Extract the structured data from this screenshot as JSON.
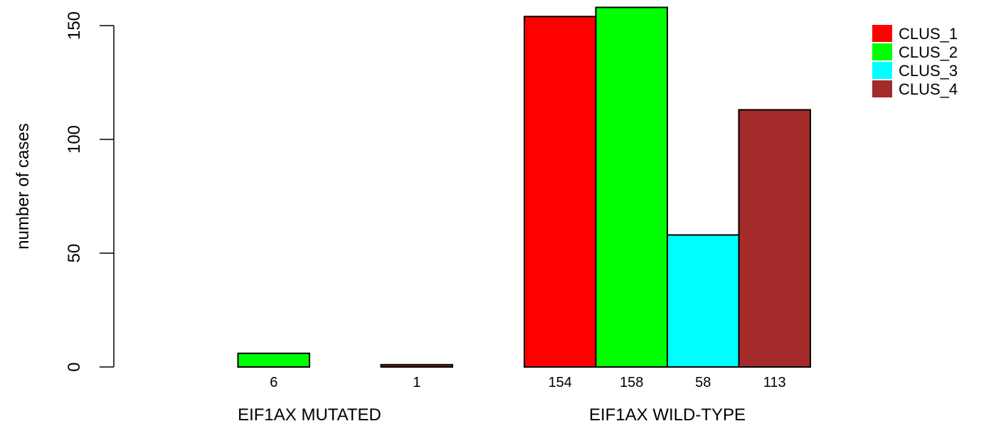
{
  "chart_data": {
    "type": "bar",
    "ylabel": "number of cases",
    "ylim": [
      0,
      160
    ],
    "yticks": [
      0,
      50,
      100,
      150
    ],
    "groups": [
      {
        "label": "EIF1AX MUTATED",
        "values": [
          0,
          6,
          0,
          1
        ],
        "value_labels": [
          "",
          "6",
          "",
          "1"
        ]
      },
      {
        "label": "EIF1AX WILD-TYPE",
        "values": [
          154,
          158,
          58,
          113
        ],
        "value_labels": [
          "154",
          "158",
          "58",
          "113"
        ]
      }
    ],
    "series": [
      {
        "name": "CLUS_1",
        "color": "#ff0000"
      },
      {
        "name": "CLUS_2",
        "color": "#00ff00"
      },
      {
        "name": "CLUS_3",
        "color": "#00ffff"
      },
      {
        "name": "CLUS_4",
        "color": "#a52a2a"
      }
    ],
    "legend": "top-right",
    "grid": false
  }
}
